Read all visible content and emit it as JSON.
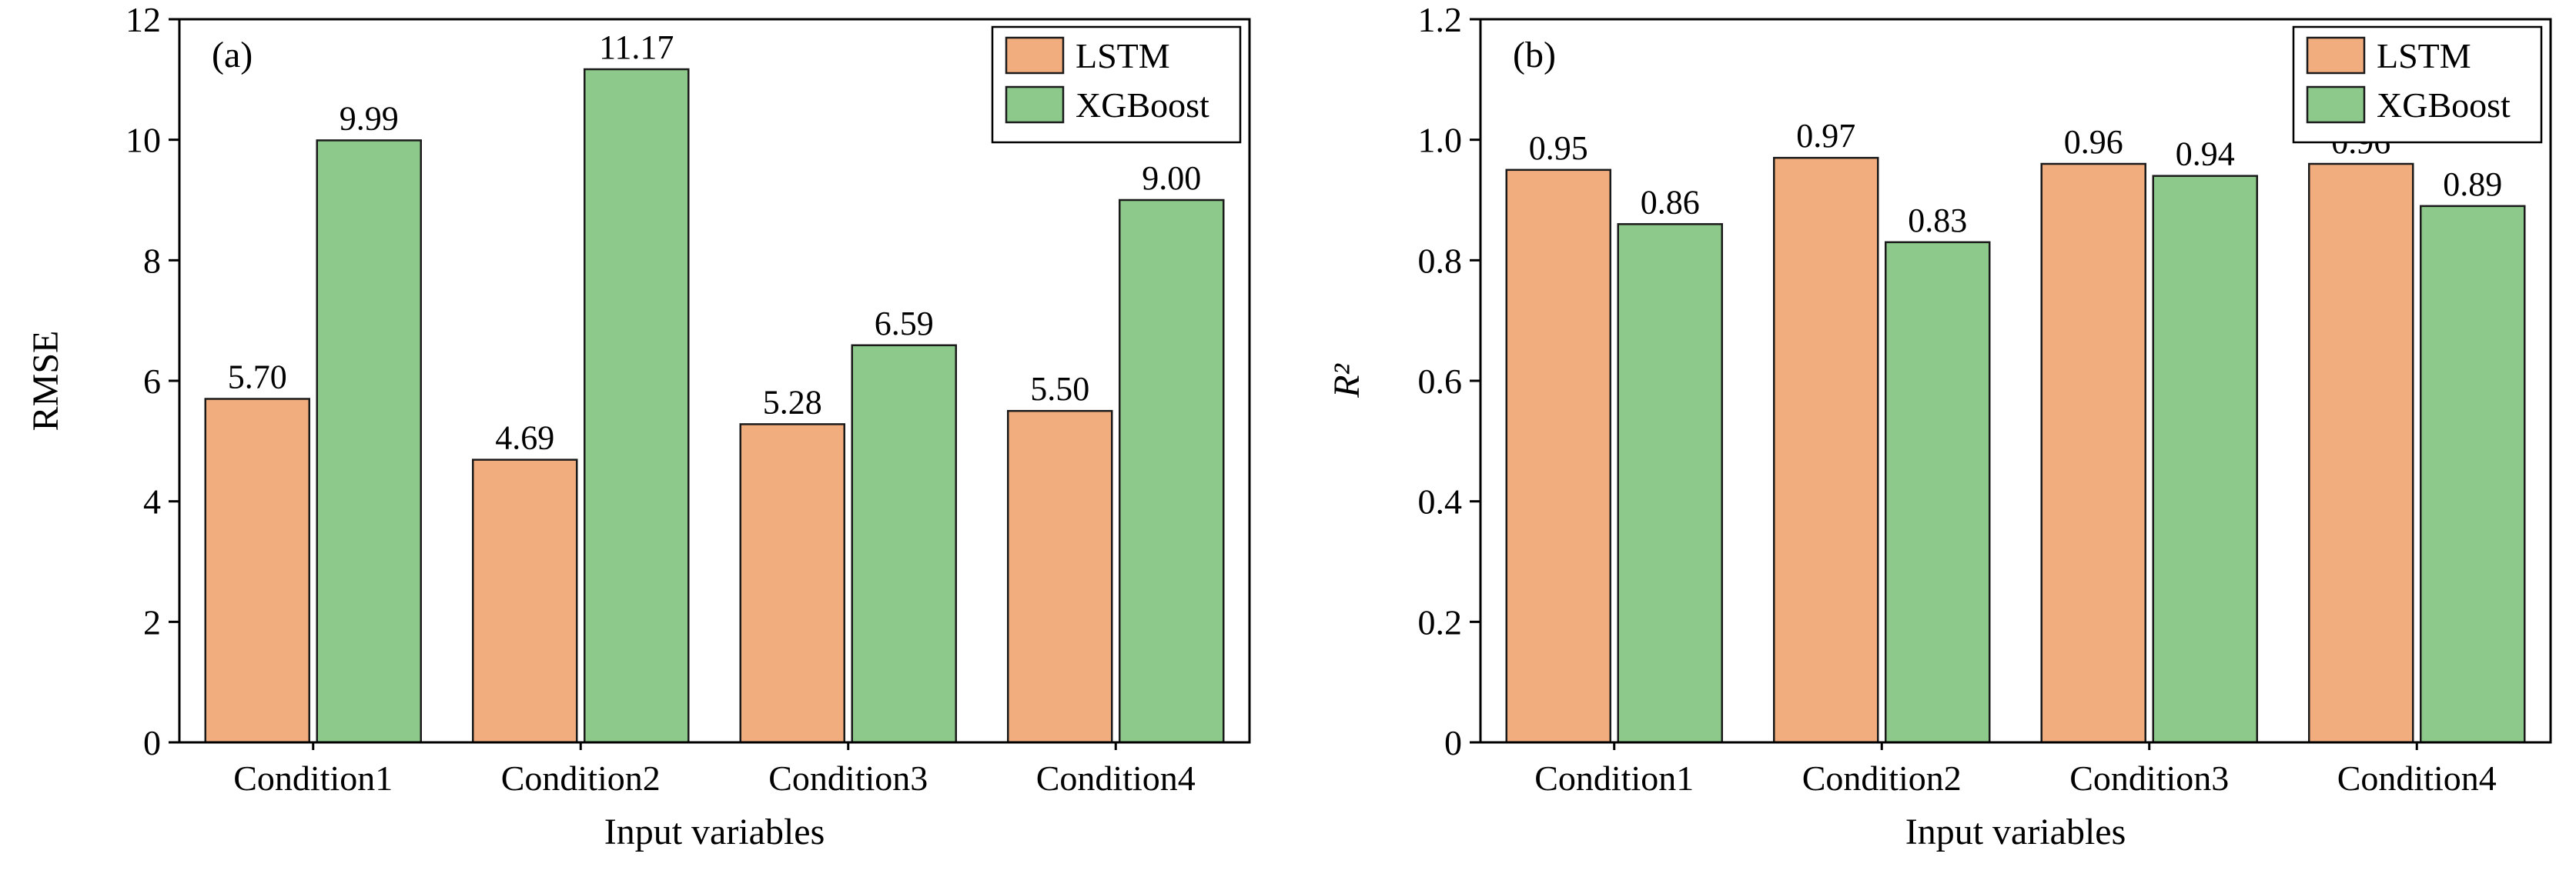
{
  "figure": {
    "background": "#ffffff"
  },
  "colors": {
    "lstm_fill": "#F2AD7E",
    "xgboost_fill": "#8DC98A",
    "bar_edge": "#1a1a1a",
    "axis": "#000000",
    "text": "#000000",
    "legend_bg": "#ffffff"
  },
  "chart_data": [
    {
      "type": "bar",
      "panel_label": "(a)",
      "xlabel": "Input variables",
      "ylabel": "RMSE",
      "ylabel_style": "normal",
      "ylim": [
        0,
        12
      ],
      "yticks": [
        0,
        2,
        4,
        6,
        8,
        10,
        12
      ],
      "ytick_labels": [
        "0",
        "2",
        "4",
        "6",
        "8",
        "10",
        "12"
      ],
      "categories": [
        "Condition1",
        "Condition2",
        "Condition3",
        "Condition4"
      ],
      "series": [
        {
          "name": "LSTM",
          "color_key": "lstm_fill",
          "values": [
            5.7,
            4.69,
            5.28,
            5.5
          ],
          "labels": [
            "5.70",
            "4.69",
            "5.28",
            "5.50"
          ]
        },
        {
          "name": "XGBoost",
          "color_key": "xgboost_fill",
          "values": [
            9.99,
            11.17,
            6.59,
            9.0
          ],
          "labels": [
            "9.99",
            "11.17",
            "6.59",
            "9.00"
          ]
        }
      ],
      "legend": {
        "position": "top-right",
        "entries": [
          "LSTM",
          "XGBoost"
        ]
      },
      "grid": false,
      "value_labels": true
    },
    {
      "type": "bar",
      "panel_label": "(b)",
      "xlabel": "Input variables",
      "ylabel": "R²",
      "ylabel_style": "italic",
      "ylim": [
        0,
        1.2
      ],
      "yticks": [
        0,
        0.2,
        0.4,
        0.6,
        0.8,
        1.0,
        1.2
      ],
      "ytick_labels": [
        "0",
        "0.2",
        "0.4",
        "0.6",
        "0.8",
        "1.0",
        "1.2"
      ],
      "categories": [
        "Condition1",
        "Condition2",
        "Condition3",
        "Condition4"
      ],
      "series": [
        {
          "name": "LSTM",
          "color_key": "lstm_fill",
          "values": [
            0.95,
            0.97,
            0.96,
            0.96
          ],
          "labels": [
            "0.95",
            "0.97",
            "0.96",
            "0.96"
          ]
        },
        {
          "name": "XGBoost",
          "color_key": "xgboost_fill",
          "values": [
            0.86,
            0.83,
            0.94,
            0.89
          ],
          "labels": [
            "0.86",
            "0.83",
            "0.94",
            "0.89"
          ]
        }
      ],
      "legend": {
        "position": "top-right",
        "entries": [
          "LSTM",
          "XGBoost"
        ]
      },
      "grid": false,
      "value_labels": true
    }
  ]
}
